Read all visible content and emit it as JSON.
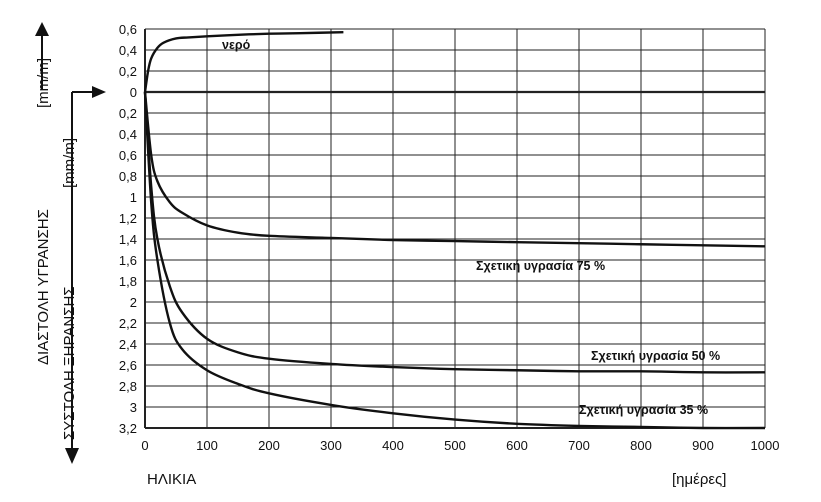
{
  "chart_data": {
    "type": "line",
    "x_axis": {
      "label": "ΗΛΙΚΙΑ",
      "unit": "[ημέρες]",
      "range": [
        0,
        1000
      ],
      "ticks": [
        0,
        100,
        200,
        300,
        400,
        500,
        600,
        700,
        800,
        900,
        1000
      ]
    },
    "y_axis_up": {
      "label": "ΔΙΑΣΤΟΛΗ   ΥΓΡΑΝΣΗΣ",
      "unit": "[mm/m]",
      "range": [
        0,
        0.6
      ],
      "ticks": [
        "0,6",
        "0,4",
        "0,2",
        "0"
      ]
    },
    "y_axis_down": {
      "label": "ΣΥΣΤΟΛΗ   ΞΗΡΑΝΣΗΣ",
      "unit": "[mm/m]",
      "range": [
        0,
        3.2
      ],
      "ticks": [
        "0,2",
        "0,4",
        "0,6",
        "0,8",
        "1",
        "1,2",
        "1,4",
        "1,6",
        "1,8",
        "2",
        "2,2",
        "2,4",
        "2,6",
        "2,8",
        "3",
        "3,2"
      ]
    },
    "grid": true,
    "series": [
      {
        "name": "νερό",
        "x": [
          0,
          5,
          10,
          20,
          30,
          50,
          70,
          100,
          150,
          200,
          250,
          320
        ],
        "y": [
          0,
          0.2,
          0.32,
          0.42,
          0.47,
          0.51,
          0.52,
          0.53,
          0.545,
          0.555,
          0.56,
          0.57
        ]
      },
      {
        "name": "Σχετική υγρασία 75 %",
        "x": [
          0,
          10,
          20,
          40,
          60,
          100,
          150,
          200,
          300,
          400,
          500,
          600,
          700,
          800,
          900,
          1000
        ],
        "y": [
          0,
          -0.6,
          -0.85,
          -1.05,
          -1.15,
          -1.27,
          -1.34,
          -1.37,
          -1.39,
          -1.41,
          -1.42,
          -1.43,
          -1.44,
          -1.45,
          -1.46,
          -1.47
        ]
      },
      {
        "name": "Σχετική υγρασία 50 %",
        "x": [
          0,
          10,
          20,
          40,
          60,
          100,
          150,
          200,
          300,
          400,
          500,
          600,
          700,
          800,
          900,
          1000
        ],
        "y": [
          0,
          -0.9,
          -1.4,
          -1.85,
          -2.1,
          -2.35,
          -2.48,
          -2.54,
          -2.59,
          -2.62,
          -2.64,
          -2.65,
          -2.66,
          -2.66,
          -2.67,
          -2.67
        ]
      },
      {
        "name": "Σχετική υγρασία 35 %",
        "x": [
          0,
          10,
          20,
          40,
          60,
          100,
          150,
          200,
          300,
          400,
          500,
          600,
          700,
          800,
          900,
          1000
        ],
        "y": [
          0,
          -1.05,
          -1.6,
          -2.2,
          -2.45,
          -2.65,
          -2.78,
          -2.87,
          -2.98,
          -3.06,
          -3.12,
          -3.16,
          -3.18,
          -3.19,
          -3.2,
          -3.2
        ]
      }
    ]
  }
}
